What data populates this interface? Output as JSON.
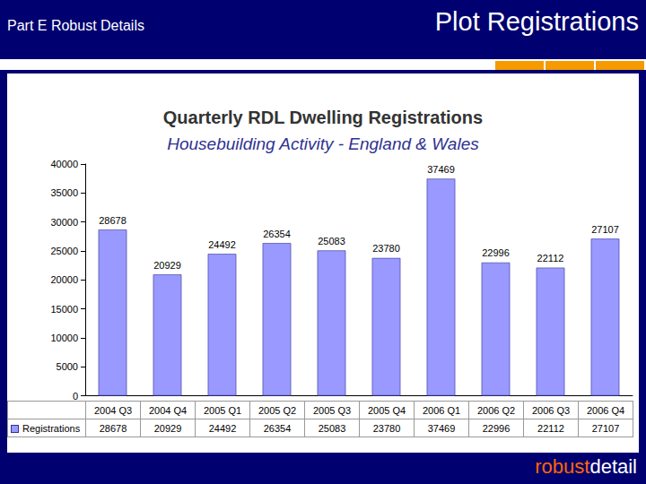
{
  "header": {
    "left": "Part E Robust Details",
    "right": "Plot Registrations"
  },
  "footer": {
    "parts": [
      "robust",
      "detail"
    ]
  },
  "chart_data": {
    "type": "bar",
    "title": "Quarterly RDL Dwelling Registrations",
    "subtitle": "Housebuilding Activity - England & Wales",
    "categories": [
      "2004 Q3",
      "2004 Q4",
      "2005 Q1",
      "2005 Q2",
      "2005 Q3",
      "2005 Q4",
      "2006 Q1",
      "2006 Q2",
      "2006 Q3",
      "2006 Q4"
    ],
    "series": [
      {
        "name": "Registrations",
        "color": "#9999ff",
        "values": [
          28678,
          20929,
          24492,
          26354,
          25083,
          23780,
          37469,
          22996,
          22112,
          27107
        ]
      }
    ],
    "ylim": [
      0,
      40000
    ],
    "yticks": [
      0,
      5000,
      10000,
      15000,
      20000,
      25000,
      30000,
      35000,
      40000
    ],
    "grid": false,
    "data_labels": true
  }
}
